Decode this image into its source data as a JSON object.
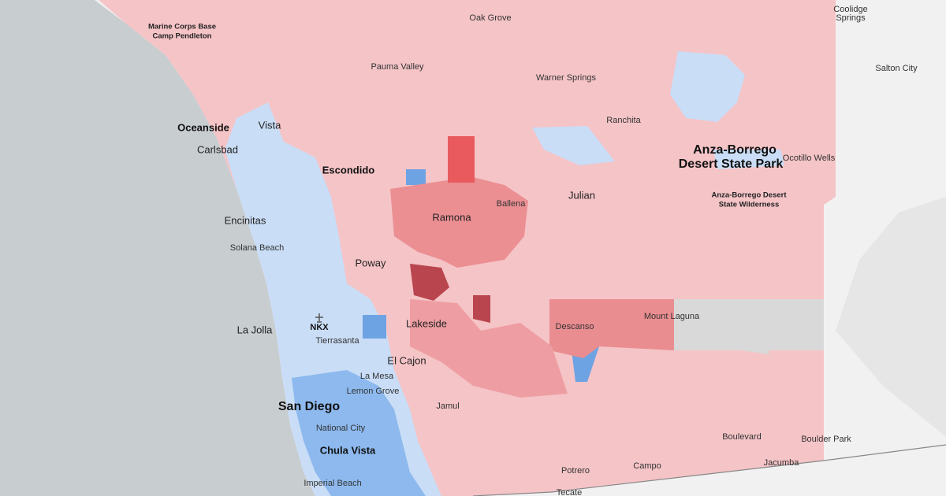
{
  "places": [
    "Marine Corps Base",
    "Camp Pendleton",
    "Oak Grove",
    "Coolidge",
    "Springs",
    "Salton City",
    "Pauma Valley",
    "Warner Springs",
    "Oceanside",
    "Vista",
    "Ranchita",
    "Carlsbad",
    "Escondido",
    "Anza-Borrego",
    "Desert State Park",
    "Ocotillo Wells",
    "Ballena",
    "Julian",
    "Anza-Borrego Desert",
    "State Wilderness",
    "Ramona",
    "Encinitas",
    "Solana Beach",
    "Poway",
    "NKX",
    "La Jolla",
    "Tierrasanta",
    "Lakeside",
    "Descanso",
    "Mount Laguna",
    "El Cajon",
    "La Mesa",
    "Lemon Grove",
    "San Diego",
    "Jamul",
    "National City",
    "Boulevard",
    "Boulder Park",
    "Chula Vista",
    "Potrero",
    "Campo",
    "Jacumba",
    "Imperial Beach",
    "Tecate"
  ]
}
